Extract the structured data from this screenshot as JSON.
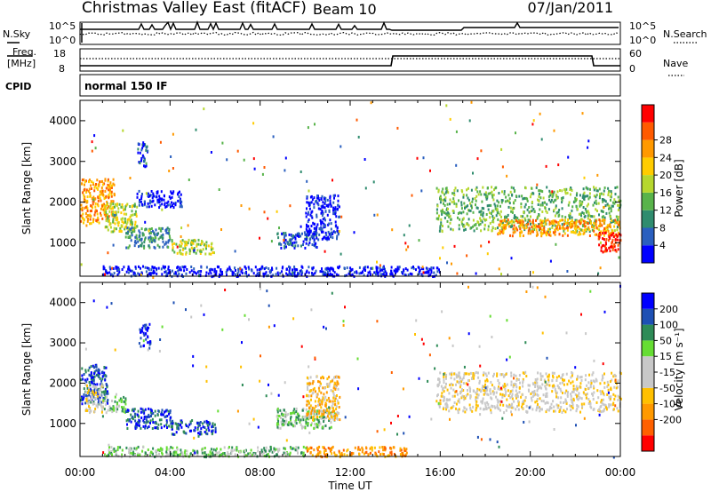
{
  "header": {
    "title": "Christmas Valley East (fitACF)",
    "beam": "Beam 10",
    "date": "07/Jan/2011"
  },
  "status_panel": {
    "nsky_label": "N.Sky",
    "nsearch_label": "N.Search",
    "noise_ticks_left": [
      "10^5",
      "10^0"
    ],
    "noise_ticks_right": [
      "10^5",
      "10^0"
    ],
    "freq_label": [
      "Freq.",
      "[MHz]"
    ],
    "freq_ticks": [
      "18",
      "8"
    ],
    "nave_label": "Nave",
    "nave_ticks": [
      "60",
      "0"
    ],
    "cpid_label": "CPID",
    "cpid_value": "normal 150 IF"
  },
  "colors": {
    "power": [
      "#0000ff",
      "#2a5fbf",
      "#2f8c6e",
      "#58b34a",
      "#b6d72e",
      "#ffcc00",
      "#ff9900",
      "#ff5a00",
      "#ff0000"
    ],
    "velocity": [
      "#ff0000",
      "#ff6000",
      "#ff9900",
      "#ffc000",
      "#c8c8c8",
      "#c8c8c8",
      "#66dd33",
      "#2e8b57",
      "#1e50b4",
      "#0000ff"
    ],
    "ground": "#b0b0b0"
  },
  "chart_data": [
    {
      "type": "heatmap",
      "name": "power",
      "xlabel": "",
      "ylabel": "Slant Range [km]",
      "xlim": [
        0,
        24
      ],
      "ylim": [
        180,
        4500
      ],
      "yticks": [
        "1000",
        "2000",
        "3000",
        "4000"
      ],
      "colorbar": {
        "label": "Power [dB]",
        "ticks": [
          "4",
          "8",
          "12",
          "16",
          "20",
          "24",
          "28"
        ]
      },
      "regions": [
        {
          "t0": 0.0,
          "t1": 1.5,
          "r0": 1500,
          "r1": 2600,
          "level": 6
        },
        {
          "t0": 1.0,
          "t1": 2.5,
          "r0": 1300,
          "r1": 2000,
          "level": 4
        },
        {
          "t0": 2.0,
          "t1": 4.0,
          "r0": 900,
          "r1": 1400,
          "level": 2
        },
        {
          "t0": 4.0,
          "t1": 6.0,
          "r0": 750,
          "r1": 1100,
          "level": 4
        },
        {
          "t0": 2.5,
          "t1": 3.0,
          "r0": 2900,
          "r1": 3500,
          "level": 1
        },
        {
          "t0": 2.5,
          "t1": 4.5,
          "r0": 1900,
          "r1": 2300,
          "level": 0
        },
        {
          "t0": 8.7,
          "t1": 10.5,
          "r0": 900,
          "r1": 1300,
          "level": 1
        },
        {
          "t0": 10.0,
          "t1": 11.5,
          "r0": 1100,
          "r1": 2200,
          "level": 0
        },
        {
          "t0": 15.8,
          "t1": 24.0,
          "r0": 1300,
          "r1": 2400,
          "level": 3
        },
        {
          "t0": 18.5,
          "t1": 24.0,
          "r0": 1200,
          "r1": 1600,
          "level": 6
        },
        {
          "t0": 23.0,
          "t1": 24.0,
          "r0": 800,
          "r1": 1300,
          "level": 8
        },
        {
          "t0": 1.0,
          "t1": 16.0,
          "r0": 200,
          "r1": 450,
          "level": 0
        }
      ]
    },
    {
      "type": "heatmap",
      "name": "velocity",
      "xlabel": "Time UT",
      "ylabel": "Slant Range [km]",
      "xlim": [
        0,
        24
      ],
      "ylim": [
        180,
        4500
      ],
      "yticks": [
        "1000",
        "2000",
        "3000",
        "4000"
      ],
      "xticks": [
        "00:00",
        "04:00",
        "08:00",
        "12:00",
        "16:00",
        "20:00",
        "00:00"
      ],
      "colorbar": {
        "label": "Velocity [m s⁻¹]",
        "ticks": [
          "200",
          "100",
          "50",
          "15",
          "-15",
          "-50",
          "-100",
          "-200"
        ]
      },
      "regions": [
        {
          "t0": 0.0,
          "t1": 1.2,
          "r0": 1500,
          "r1": 2500,
          "level": 8
        },
        {
          "t0": 0.2,
          "t1": 1.0,
          "r0": 1300,
          "r1": 2000,
          "level": 4
        },
        {
          "t0": 1.0,
          "t1": 2.0,
          "r0": 1300,
          "r1": 1700,
          "level": 6
        },
        {
          "t0": 2.0,
          "t1": 4.0,
          "r0": 900,
          "r1": 1400,
          "level": 8
        },
        {
          "t0": 4.0,
          "t1": 6.0,
          "r0": 750,
          "r1": 1100,
          "level": 8
        },
        {
          "t0": 2.6,
          "t1": 3.1,
          "r0": 2900,
          "r1": 3500,
          "level": 9
        },
        {
          "t0": 8.7,
          "t1": 11.3,
          "r0": 900,
          "r1": 1400,
          "level": 6
        },
        {
          "t0": 10.0,
          "t1": 11.5,
          "r0": 1100,
          "r1": 2200,
          "level": 3
        },
        {
          "t0": 15.8,
          "t1": 24.0,
          "r0": 1300,
          "r1": 2300,
          "level": 4
        },
        {
          "t0": 10.0,
          "t1": 14.5,
          "r0": 200,
          "r1": 450,
          "level": 2
        },
        {
          "t0": 1.0,
          "t1": 10.0,
          "r0": 200,
          "r1": 450,
          "level": 6
        }
      ]
    }
  ]
}
